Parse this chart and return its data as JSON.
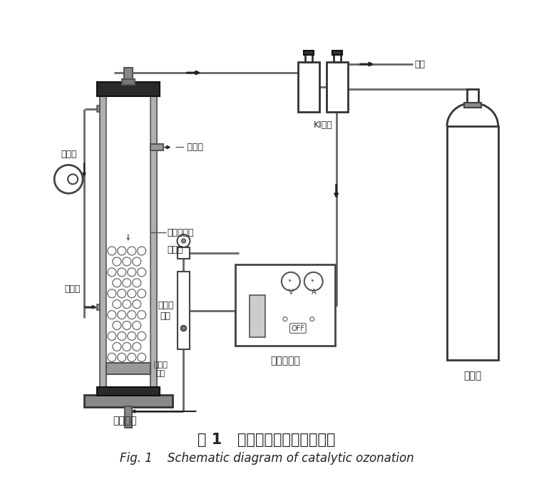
{
  "title_cn": "图 1   臭氧催化氧化实验装置图",
  "title_en": "Fig. 1    Schematic diagram of catalytic ozonation",
  "bg_color": "#ffffff",
  "labels": {
    "sampling": "取样口",
    "catalyst": "臭氧催化剂",
    "three_valve": "三通阀",
    "flowmeter": "转子流\n量计",
    "ozone_gen": "臭氧发生器",
    "ki_solution": "KI溶液",
    "tail_gas": "尾气",
    "reflux_pump": "回流泵",
    "inner_reflux": "内回流",
    "corundum": "刚玉曝\n气盘",
    "reaction": "反应装置",
    "oxygen": "氧气瓶"
  }
}
